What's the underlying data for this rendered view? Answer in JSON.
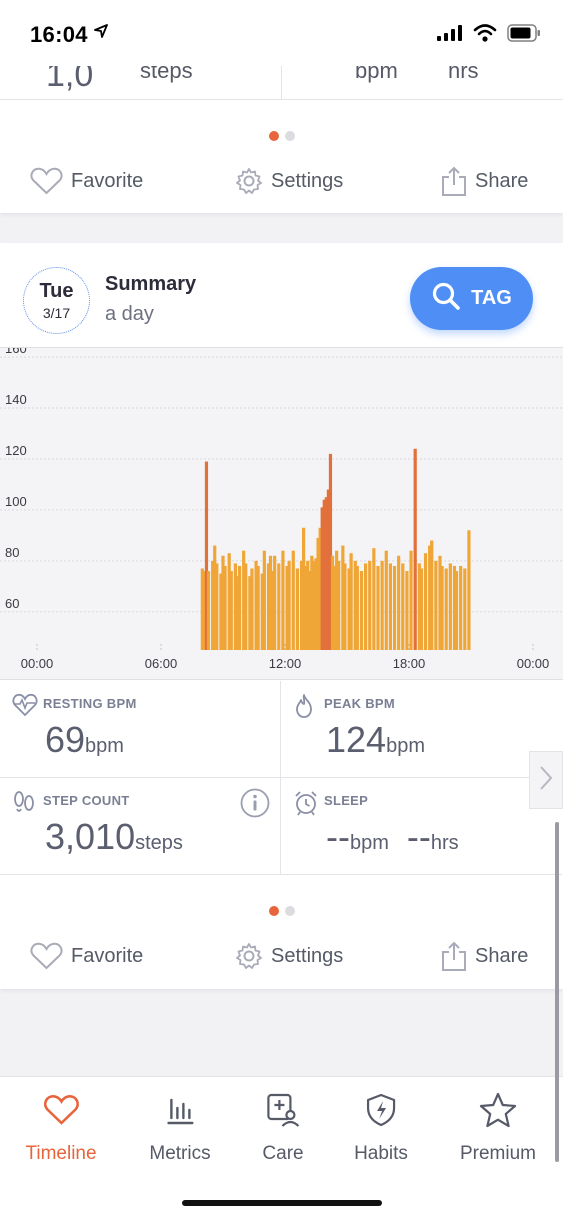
{
  "status_bar": {
    "time": "16:04"
  },
  "top_card": {
    "cut_steps_unit": "steps",
    "cut_bpm_unit": "bpm",
    "cut_hrs_unit": "hrs",
    "actions": {
      "favorite": "Favorite",
      "settings": "Settings",
      "share": "Share"
    }
  },
  "summary": {
    "day": "Tue",
    "date": "3/17",
    "title": "Summary",
    "subtitle": "a day",
    "tag_label": "TAG"
  },
  "chart_data": {
    "type": "bar",
    "ylim": [
      45,
      162
    ],
    "yticks": [
      60,
      80,
      100,
      120,
      140,
      160
    ],
    "xticks": [
      "00:00",
      "06:00",
      "12:00",
      "18:00",
      "00:00"
    ],
    "x_range_hours": [
      0,
      24
    ],
    "colors": {
      "normal": "#f0a637",
      "peak": "#e2703a"
    },
    "series": [
      {
        "values": [
          {
            "t": 8.0,
            "v": 77
          },
          {
            "t": 8.1,
            "v": 76
          },
          {
            "t": 8.2,
            "v": 119
          },
          {
            "t": 8.3,
            "v": 76
          },
          {
            "t": 8.5,
            "v": 80
          },
          {
            "t": 8.6,
            "v": 86
          },
          {
            "t": 8.7,
            "v": 79
          },
          {
            "t": 8.9,
            "v": 75
          },
          {
            "t": 9.0,
            "v": 82
          },
          {
            "t": 9.1,
            "v": 78
          },
          {
            "t": 9.3,
            "v": 83
          },
          {
            "t": 9.4,
            "v": 76
          },
          {
            "t": 9.6,
            "v": 79
          },
          {
            "t": 9.7,
            "v": 74
          },
          {
            "t": 9.8,
            "v": 78
          },
          {
            "t": 10.0,
            "v": 84
          },
          {
            "t": 10.1,
            "v": 79
          },
          {
            "t": 10.3,
            "v": 74
          },
          {
            "t": 10.4,
            "v": 77
          },
          {
            "t": 10.6,
            "v": 80
          },
          {
            "t": 10.7,
            "v": 78
          },
          {
            "t": 10.9,
            "v": 75
          },
          {
            "t": 11.0,
            "v": 84
          },
          {
            "t": 11.2,
            "v": 79
          },
          {
            "t": 11.3,
            "v": 82
          },
          {
            "t": 11.4,
            "v": 76
          },
          {
            "t": 11.5,
            "v": 82
          },
          {
            "t": 11.7,
            "v": 79
          },
          {
            "t": 11.9,
            "v": 84
          },
          {
            "t": 12.1,
            "v": 78
          },
          {
            "t": 12.2,
            "v": 80
          },
          {
            "t": 12.4,
            "v": 84
          },
          {
            "t": 12.6,
            "v": 77
          },
          {
            "t": 12.8,
            "v": 80
          },
          {
            "t": 12.9,
            "v": 93
          },
          {
            "t": 13.0,
            "v": 78
          },
          {
            "t": 13.1,
            "v": 80
          },
          {
            "t": 13.2,
            "v": 76
          },
          {
            "t": 13.3,
            "v": 82
          },
          {
            "t": 13.4,
            "v": 80
          },
          {
            "t": 13.5,
            "v": 81
          },
          {
            "t": 13.6,
            "v": 89
          },
          {
            "t": 13.7,
            "v": 93
          },
          {
            "t": 13.8,
            "v": 101
          },
          {
            "t": 13.9,
            "v": 104
          },
          {
            "t": 14.0,
            "v": 105
          },
          {
            "t": 14.1,
            "v": 108
          },
          {
            "t": 14.2,
            "v": 122
          },
          {
            "t": 14.3,
            "v": 82
          },
          {
            "t": 14.4,
            "v": 78
          },
          {
            "t": 14.5,
            "v": 84
          },
          {
            "t": 14.6,
            "v": 80
          },
          {
            "t": 14.8,
            "v": 86
          },
          {
            "t": 14.9,
            "v": 79
          },
          {
            "t": 15.1,
            "v": 77
          },
          {
            "t": 15.2,
            "v": 83
          },
          {
            "t": 15.4,
            "v": 80
          },
          {
            "t": 15.5,
            "v": 78
          },
          {
            "t": 15.7,
            "v": 76
          },
          {
            "t": 15.9,
            "v": 79
          },
          {
            "t": 16.1,
            "v": 80
          },
          {
            "t": 16.3,
            "v": 85
          },
          {
            "t": 16.5,
            "v": 78
          },
          {
            "t": 16.7,
            "v": 80
          },
          {
            "t": 16.9,
            "v": 84
          },
          {
            "t": 17.1,
            "v": 79
          },
          {
            "t": 17.3,
            "v": 78
          },
          {
            "t": 17.5,
            "v": 82
          },
          {
            "t": 17.7,
            "v": 79
          },
          {
            "t": 17.9,
            "v": 76
          },
          {
            "t": 18.1,
            "v": 84
          },
          {
            "t": 18.3,
            "v": 124
          },
          {
            "t": 18.5,
            "v": 79
          },
          {
            "t": 18.6,
            "v": 77
          },
          {
            "t": 18.8,
            "v": 83
          },
          {
            "t": 19.0,
            "v": 86
          },
          {
            "t": 19.1,
            "v": 88
          },
          {
            "t": 19.3,
            "v": 80
          },
          {
            "t": 19.5,
            "v": 82
          },
          {
            "t": 19.6,
            "v": 78
          },
          {
            "t": 19.8,
            "v": 77
          },
          {
            "t": 20.0,
            "v": 79
          },
          {
            "t": 20.2,
            "v": 78
          },
          {
            "t": 20.3,
            "v": 76
          },
          {
            "t": 20.5,
            "v": 78
          },
          {
            "t": 20.7,
            "v": 77
          },
          {
            "t": 20.9,
            "v": 92
          }
        ]
      }
    ],
    "grid": true
  },
  "metrics": {
    "resting": {
      "label": "RESTING BPM",
      "value": "69",
      "unit": "bpm"
    },
    "peak": {
      "label": "PEAK BPM",
      "value": "124",
      "unit": "bpm"
    },
    "steps": {
      "label": "STEP COUNT",
      "value": "3,010",
      "unit": "steps"
    },
    "sleep": {
      "label": "SLEEP",
      "bpm_value": "--",
      "bpm_unit": "bpm",
      "hrs_value": "--",
      "hrs_unit": "hrs"
    }
  },
  "main_actions": {
    "favorite": "Favorite",
    "settings": "Settings",
    "share": "Share"
  },
  "tabs": [
    {
      "label": "Timeline",
      "icon": "heart-icon",
      "active": true
    },
    {
      "label": "Metrics",
      "icon": "bar-chart-icon",
      "active": false
    },
    {
      "label": "Care",
      "icon": "medical-care-icon",
      "active": false
    },
    {
      "label": "Habits",
      "icon": "shield-bolt-icon",
      "active": false
    },
    {
      "label": "Premium",
      "icon": "star-icon",
      "active": false
    }
  ]
}
